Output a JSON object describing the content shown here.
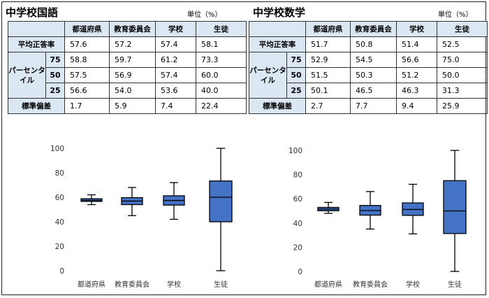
{
  "panels": [
    {
      "title": "中学校国語",
      "unit": "単位（%）",
      "col_headers": [
        "都道府県",
        "教育委員会",
        "学校",
        "生徒"
      ],
      "row_labels": {
        "mean": "平均正答率",
        "percentile_group": "パーセンタイル",
        "p75": "75",
        "p50": "50",
        "p25": "25",
        "sd": "標準偏差"
      },
      "rows": {
        "mean": [
          "57.6",
          "57.2",
          "57.4",
          "58.1"
        ],
        "p75": [
          "58.8",
          "59.7",
          "61.2",
          "73.3"
        ],
        "p50": [
          "57.5",
          "56.9",
          "57.4",
          "60.0"
        ],
        "p25": [
          "56.6",
          "54.0",
          "53.6",
          "40.0"
        ],
        "sd": [
          "1.7",
          "5.9",
          "7.4",
          "22.4"
        ]
      }
    },
    {
      "title": "中学校数学",
      "unit": "単位（%）",
      "col_headers": [
        "都道府県",
        "教育委員会",
        "学校",
        "生徒"
      ],
      "row_labels": {
        "mean": "平均正答率",
        "percentile_group": "パーセンタイル",
        "p75": "75",
        "p50": "50",
        "p25": "25",
        "sd": "標準偏差"
      },
      "rows": {
        "mean": [
          "51.7",
          "50.8",
          "51.4",
          "52.5"
        ],
        "p75": [
          "52.9",
          "54.5",
          "56.6",
          "75.0"
        ],
        "p50": [
          "51.5",
          "50.3",
          "51.2",
          "50.0"
        ],
        "p25": [
          "50.1",
          "46.5",
          "46.3",
          "31.3"
        ],
        "sd": [
          "2.7",
          "7.7",
          "9.4",
          "25.9"
        ]
      }
    }
  ],
  "chart_data": [
    {
      "type": "boxplot",
      "title": "中学校国語",
      "categories": [
        "都道府県",
        "教育委員会",
        "学校",
        "生徒"
      ],
      "ylim": [
        0,
        100
      ],
      "yticks": [
        0,
        20,
        40,
        60,
        80,
        100
      ],
      "series": [
        {
          "name": "都道府県",
          "min": 54,
          "q1": 56.6,
          "median": 57.5,
          "q3": 58.8,
          "max": 62
        },
        {
          "name": "教育委員会",
          "min": 45,
          "q1": 54.0,
          "median": 56.9,
          "q3": 59.7,
          "max": 68
        },
        {
          "name": "学校",
          "min": 42,
          "q1": 53.6,
          "median": 57.4,
          "q3": 61.2,
          "max": 72
        },
        {
          "name": "生徒",
          "min": 0,
          "q1": 40.0,
          "median": 60.0,
          "q3": 73.3,
          "max": 100
        }
      ],
      "box_color": "#4472c4"
    },
    {
      "type": "boxplot",
      "title": "中学校数学",
      "categories": [
        "都道府県",
        "教育委員会",
        "学校",
        "生徒"
      ],
      "ylim": [
        0,
        100
      ],
      "yticks": [
        0,
        20,
        40,
        60,
        80,
        100
      ],
      "series": [
        {
          "name": "都道府県",
          "min": 48,
          "q1": 50.1,
          "median": 51.5,
          "q3": 52.9,
          "max": 57
        },
        {
          "name": "教育委員会",
          "min": 35,
          "q1": 46.5,
          "median": 50.3,
          "q3": 54.5,
          "max": 66
        },
        {
          "name": "学校",
          "min": 31,
          "q1": 46.3,
          "median": 51.2,
          "q3": 56.6,
          "max": 72
        },
        {
          "name": "生徒",
          "min": 0,
          "q1": 31.3,
          "median": 50.0,
          "q3": 75.0,
          "max": 100
        }
      ],
      "box_color": "#4472c4"
    }
  ]
}
